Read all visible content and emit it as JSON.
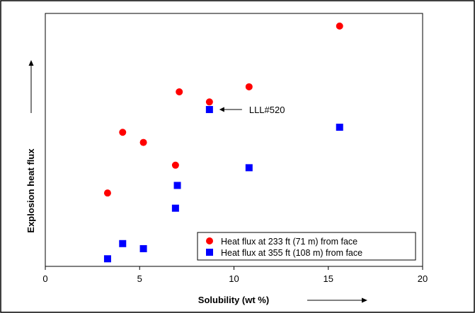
{
  "chart_data": {
    "type": "scatter",
    "xlabel": "Solubility (wt %)",
    "ylabel": "Explosion heat flux",
    "xlim": [
      0,
      20
    ],
    "xticks": [
      "0",
      "5",
      "10",
      "15",
      "20"
    ],
    "yticks_shown": false,
    "grid": false,
    "legend_position": "bottom-right",
    "annotation": "LLL#520",
    "series": [
      {
        "name": "Heat flux at 233 ft (71 m) from face",
        "marker": "circle",
        "color": "#ff0000",
        "points": [
          {
            "x": 3.3,
            "y": 0.29
          },
          {
            "x": 4.1,
            "y": 0.53
          },
          {
            "x": 5.2,
            "y": 0.49
          },
          {
            "x": 6.9,
            "y": 0.4
          },
          {
            "x": 7.1,
            "y": 0.69
          },
          {
            "x": 8.7,
            "y": 0.65
          },
          {
            "x": 10.8,
            "y": 0.71
          },
          {
            "x": 15.6,
            "y": 0.95
          }
        ]
      },
      {
        "name": "Heat flux at 355 ft (108 m) from face",
        "marker": "square",
        "color": "#0000ff",
        "points": [
          {
            "x": 3.3,
            "y": 0.03
          },
          {
            "x": 4.1,
            "y": 0.09
          },
          {
            "x": 5.2,
            "y": 0.07
          },
          {
            "x": 6.9,
            "y": 0.23
          },
          {
            "x": 7.0,
            "y": 0.32
          },
          {
            "x": 8.7,
            "y": 0.62
          },
          {
            "x": 10.8,
            "y": 0.39
          },
          {
            "x": 15.6,
            "y": 0.55
          }
        ]
      }
    ]
  }
}
